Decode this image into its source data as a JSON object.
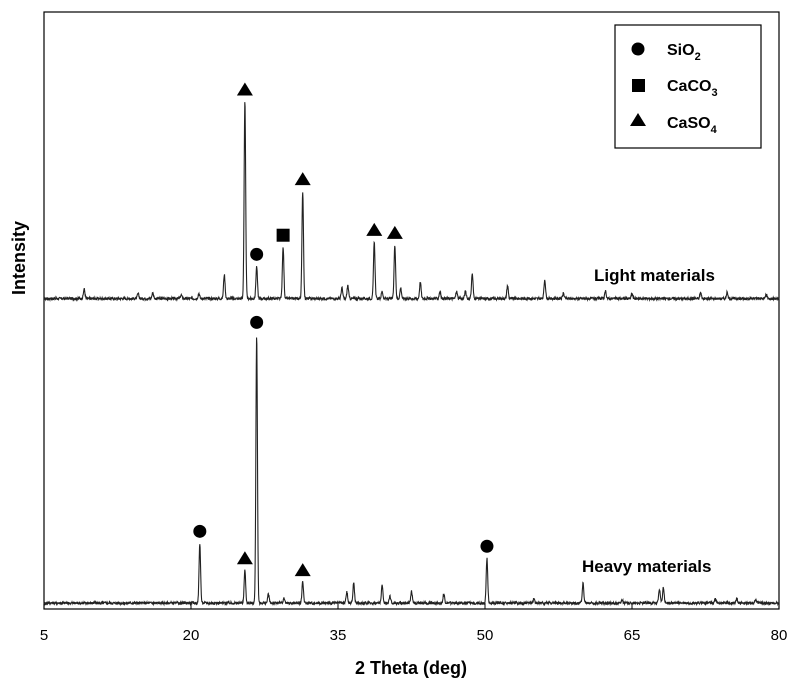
{
  "chart_data": {
    "type": "line",
    "title": "",
    "xlabel": "2 Theta (deg)",
    "ylabel": "Intensity",
    "xlim": [
      5,
      80
    ],
    "ylim": [
      0,
      100
    ],
    "x_ticks": [
      5,
      20,
      35,
      50,
      65,
      80
    ],
    "grid": false,
    "legend_position": "top-right",
    "legend": [
      {
        "marker": "circle",
        "label": "SiO",
        "subscript": "2"
      },
      {
        "marker": "square",
        "label": "CaCO",
        "subscript": "3"
      },
      {
        "marker": "triangle",
        "label": "CaSO",
        "subscript": "4"
      }
    ],
    "series": [
      {
        "name": "Light materials",
        "baseline": 52,
        "peaks": [
          {
            "x": 9.1,
            "h": 1.6
          },
          {
            "x": 14.6,
            "h": 0.8
          },
          {
            "x": 16.1,
            "h": 1.0
          },
          {
            "x": 19.0,
            "h": 0.6
          },
          {
            "x": 20.8,
            "h": 0.9
          },
          {
            "x": 23.4,
            "h": 4.0
          },
          {
            "x": 25.5,
            "h": 33
          },
          {
            "x": 26.7,
            "h": 5.4
          },
          {
            "x": 29.4,
            "h": 8.6
          },
          {
            "x": 31.4,
            "h": 18
          },
          {
            "x": 35.4,
            "h": 1.8
          },
          {
            "x": 36.0,
            "h": 2.2
          },
          {
            "x": 38.7,
            "h": 9.5
          },
          {
            "x": 39.5,
            "h": 1.2
          },
          {
            "x": 40.8,
            "h": 9.0
          },
          {
            "x": 41.4,
            "h": 1.8
          },
          {
            "x": 43.4,
            "h": 2.8
          },
          {
            "x": 45.4,
            "h": 1.2
          },
          {
            "x": 47.1,
            "h": 1.2
          },
          {
            "x": 48.0,
            "h": 1.2
          },
          {
            "x": 48.7,
            "h": 4.2
          },
          {
            "x": 52.3,
            "h": 2.2
          },
          {
            "x": 56.1,
            "h": 3.2
          },
          {
            "x": 58.0,
            "h": 0.9
          },
          {
            "x": 62.3,
            "h": 1.2
          },
          {
            "x": 65.0,
            "h": 0.8
          },
          {
            "x": 72.0,
            "h": 1.0
          },
          {
            "x": 74.7,
            "h": 1.0
          },
          {
            "x": 78.7,
            "h": 0.7
          }
        ],
        "markers": [
          {
            "x": 25.5,
            "type": "triangle"
          },
          {
            "x": 26.7,
            "type": "circle"
          },
          {
            "x": 29.4,
            "type": "square"
          },
          {
            "x": 31.4,
            "type": "triangle"
          },
          {
            "x": 38.7,
            "type": "triangle"
          },
          {
            "x": 40.8,
            "type": "triangle"
          }
        ]
      },
      {
        "name": "Heavy materials",
        "baseline": 1,
        "peaks": [
          {
            "x": 20.9,
            "h": 10
          },
          {
            "x": 25.5,
            "h": 5.5
          },
          {
            "x": 26.7,
            "h": 45
          },
          {
            "x": 27.9,
            "h": 1.5
          },
          {
            "x": 29.5,
            "h": 0.8
          },
          {
            "x": 31.4,
            "h": 3.5
          },
          {
            "x": 35.9,
            "h": 1.8
          },
          {
            "x": 36.6,
            "h": 3.4
          },
          {
            "x": 39.5,
            "h": 3.0
          },
          {
            "x": 40.3,
            "h": 1.2
          },
          {
            "x": 42.5,
            "h": 2.0
          },
          {
            "x": 45.8,
            "h": 1.5
          },
          {
            "x": 50.2,
            "h": 7.5
          },
          {
            "x": 55.0,
            "h": 0.8
          },
          {
            "x": 60.0,
            "h": 3.3
          },
          {
            "x": 64.0,
            "h": 0.6
          },
          {
            "x": 67.8,
            "h": 2.4
          },
          {
            "x": 68.2,
            "h": 2.6
          },
          {
            "x": 73.5,
            "h": 0.7
          },
          {
            "x": 75.7,
            "h": 0.8
          },
          {
            "x": 77.6,
            "h": 0.6
          }
        ],
        "markers": [
          {
            "x": 20.9,
            "type": "circle"
          },
          {
            "x": 25.5,
            "type": "triangle"
          },
          {
            "x": 26.7,
            "type": "circle"
          },
          {
            "x": 31.4,
            "type": "triangle"
          },
          {
            "x": 50.2,
            "type": "circle"
          }
        ]
      }
    ]
  }
}
